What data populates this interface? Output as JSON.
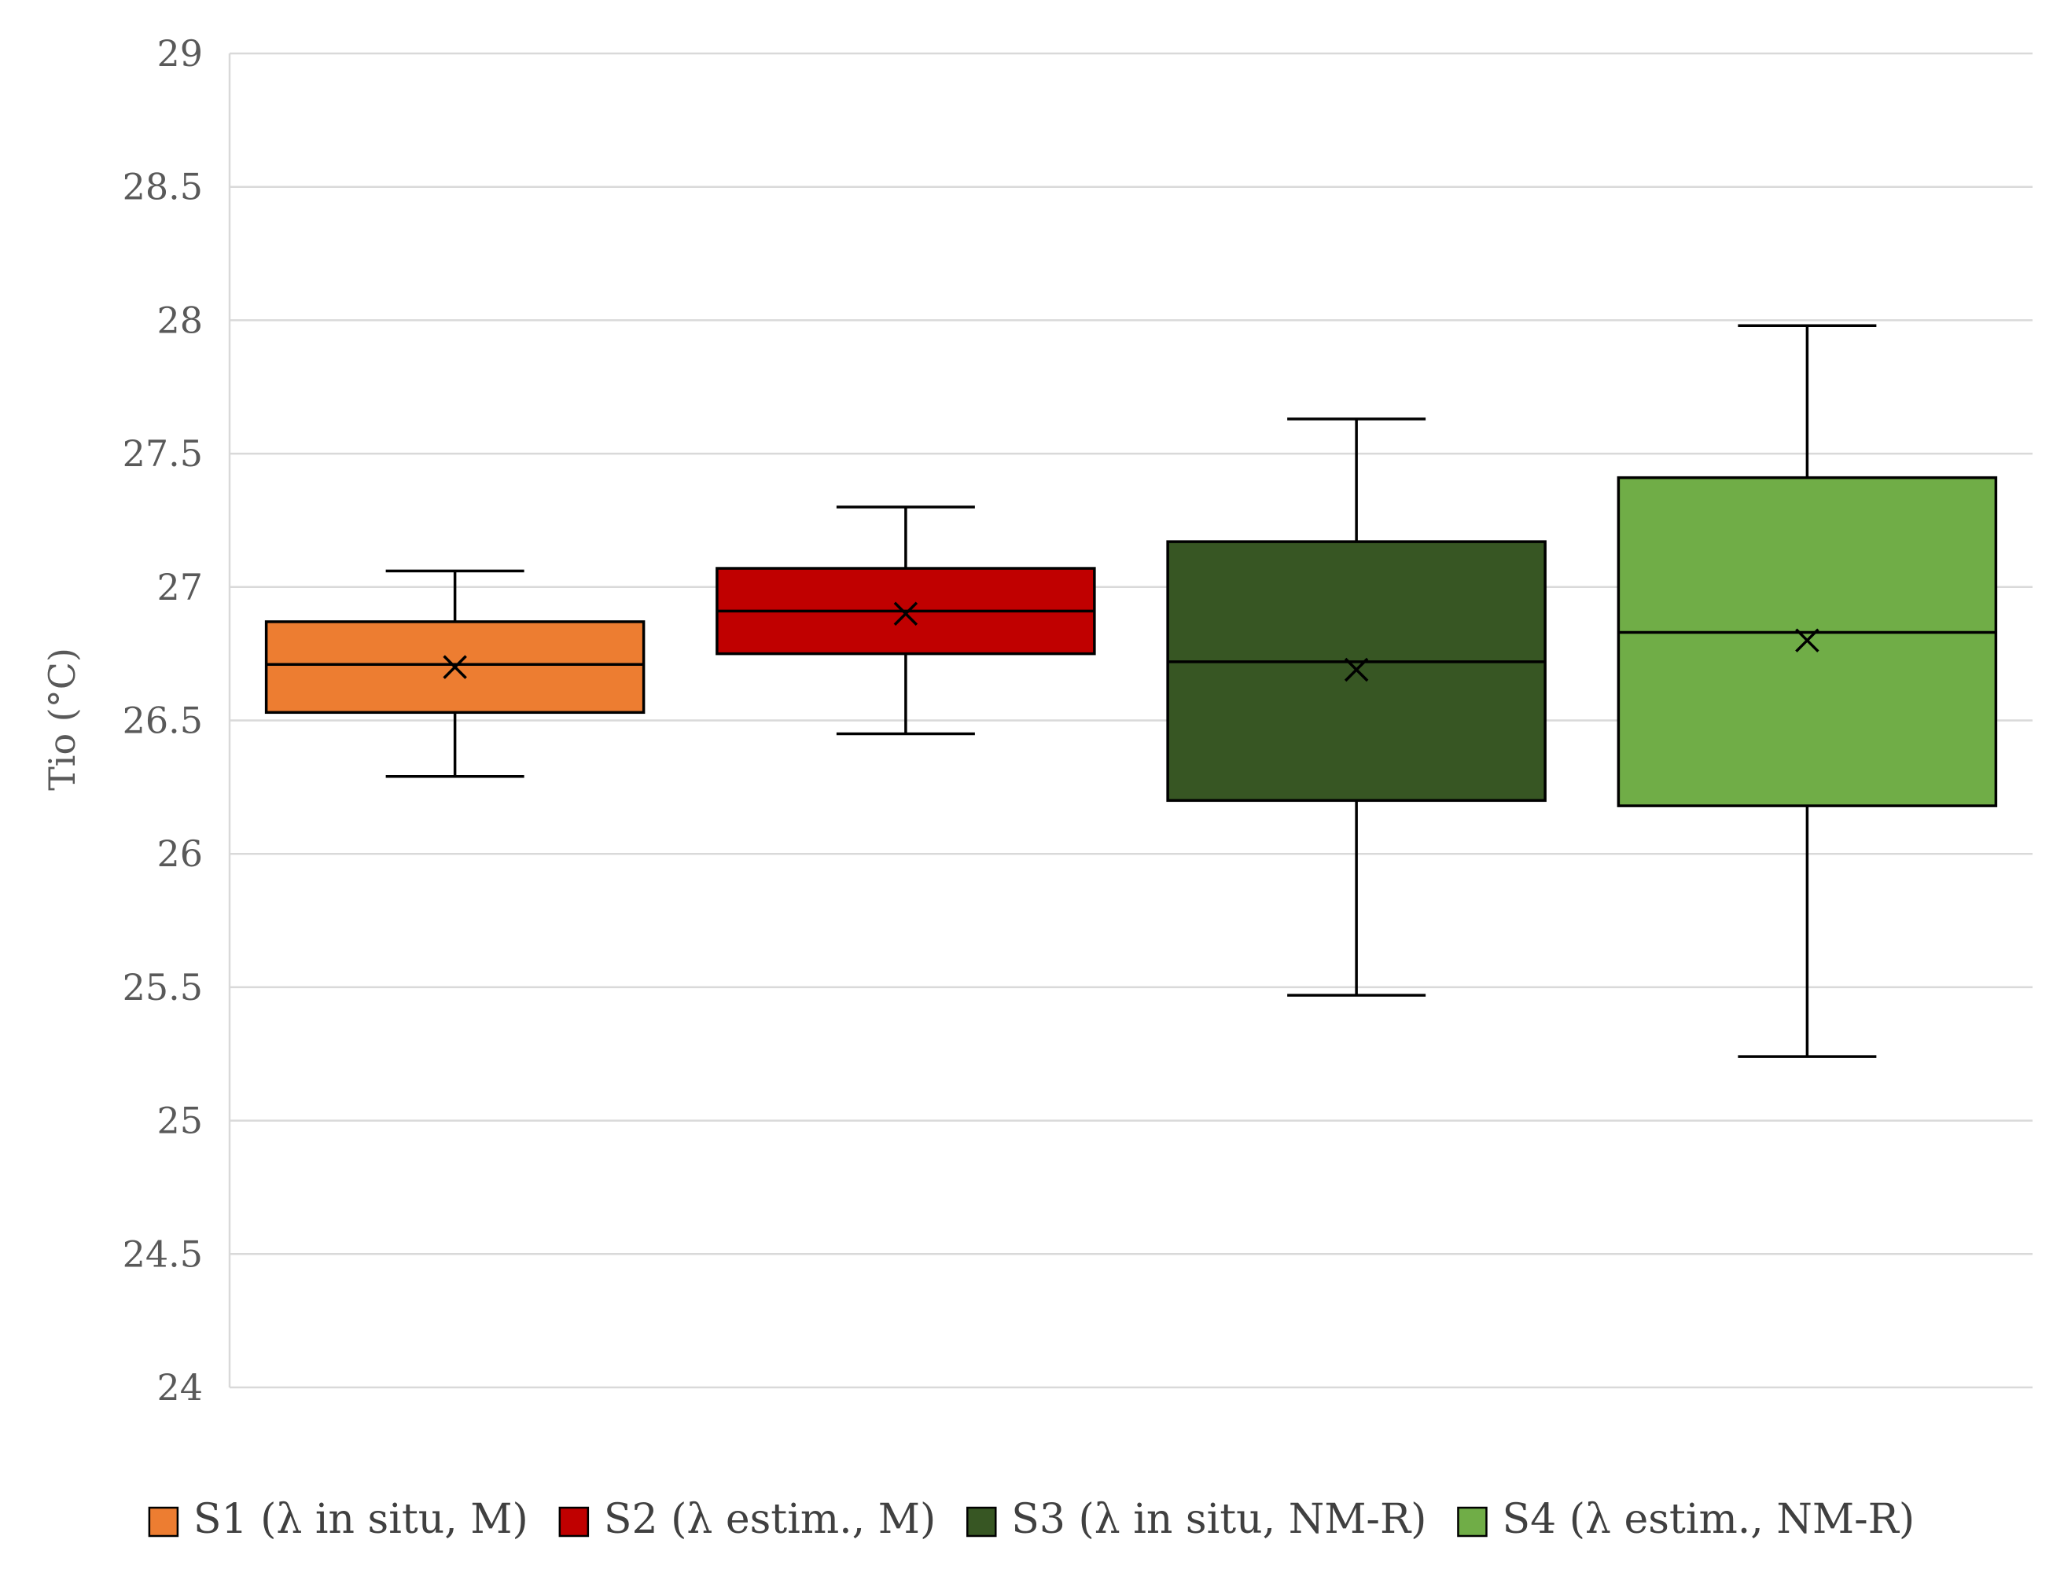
{
  "chart_data": {
    "type": "boxplot",
    "title": "",
    "xlabel": "",
    "ylabel": "Tio (°C)",
    "ylim": [
      24,
      29
    ],
    "yticks": [
      "24",
      "24.5",
      "25",
      "25.5",
      "26",
      "26.5",
      "27",
      "27.5",
      "28",
      "28.5",
      "29"
    ],
    "grid": true,
    "legend_position": "bottom",
    "series": [
      {
        "name": "S1 (λ in situ, M)",
        "color": "#ED7D31",
        "min": 26.29,
        "q1": 26.53,
        "median": 26.71,
        "q3": 26.87,
        "max": 27.06,
        "mean": 26.7
      },
      {
        "name": "S2 (λ estim., M)",
        "color": "#C00000",
        "min": 26.45,
        "q1": 26.75,
        "median": 26.91,
        "q3": 27.07,
        "max": 27.3,
        "mean": 26.9
      },
      {
        "name": "S3 (λ in situ, NM-R)",
        "color": "#375623",
        "min": 25.47,
        "q1": 26.2,
        "median": 26.72,
        "q3": 27.17,
        "max": 27.63,
        "mean": 26.69
      },
      {
        "name": "S4 (λ estim., NM-R)",
        "color": "#70AD47",
        "min": 25.24,
        "q1": 26.18,
        "median": 26.83,
        "q3": 27.41,
        "max": 27.98,
        "mean": 26.8
      }
    ]
  }
}
